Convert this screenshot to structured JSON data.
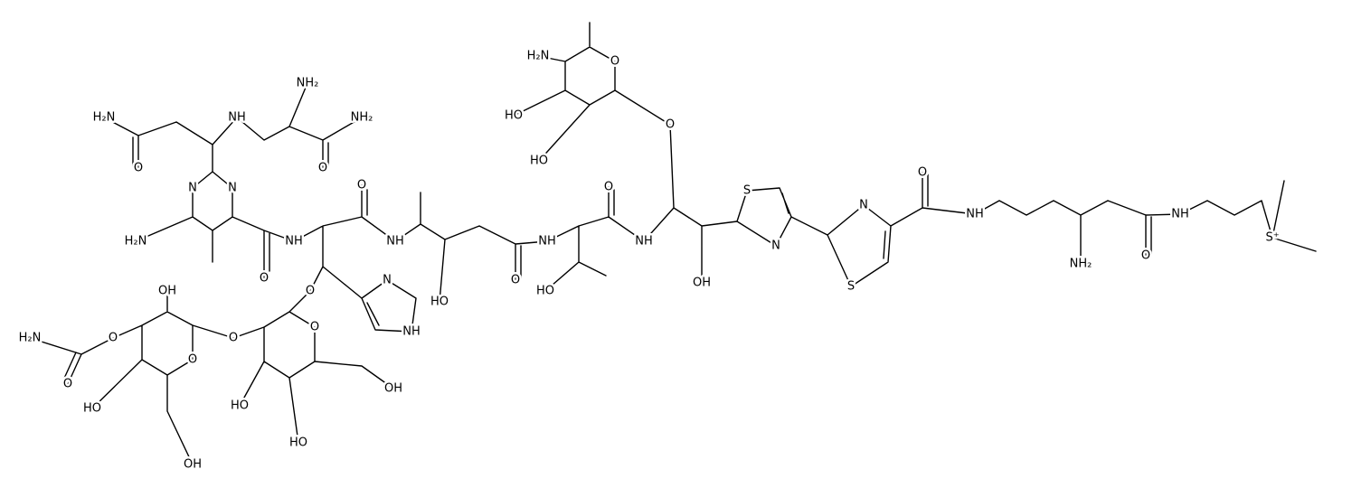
{
  "diagram": {
    "atom_labels": [
      "NH₂",
      "H₂N",
      "NH",
      "NH₂",
      "O",
      "O",
      "N",
      "N",
      "H₂N",
      "NH",
      "O",
      "NH",
      "O",
      "O",
      "OH",
      "HO",
      "N",
      "NH",
      "H₂N",
      "O",
      "O",
      "O",
      "O",
      "O",
      "HO",
      "HO",
      "OH",
      "HO",
      "OH",
      "H₂N",
      "O",
      "HO",
      "HO",
      "O",
      "O",
      "O",
      "NH",
      "NH",
      "HO",
      "S",
      "N",
      "OH",
      "N",
      "S",
      "O",
      "NH",
      "NH₂",
      "O",
      "NH",
      "S⁺"
    ]
  }
}
